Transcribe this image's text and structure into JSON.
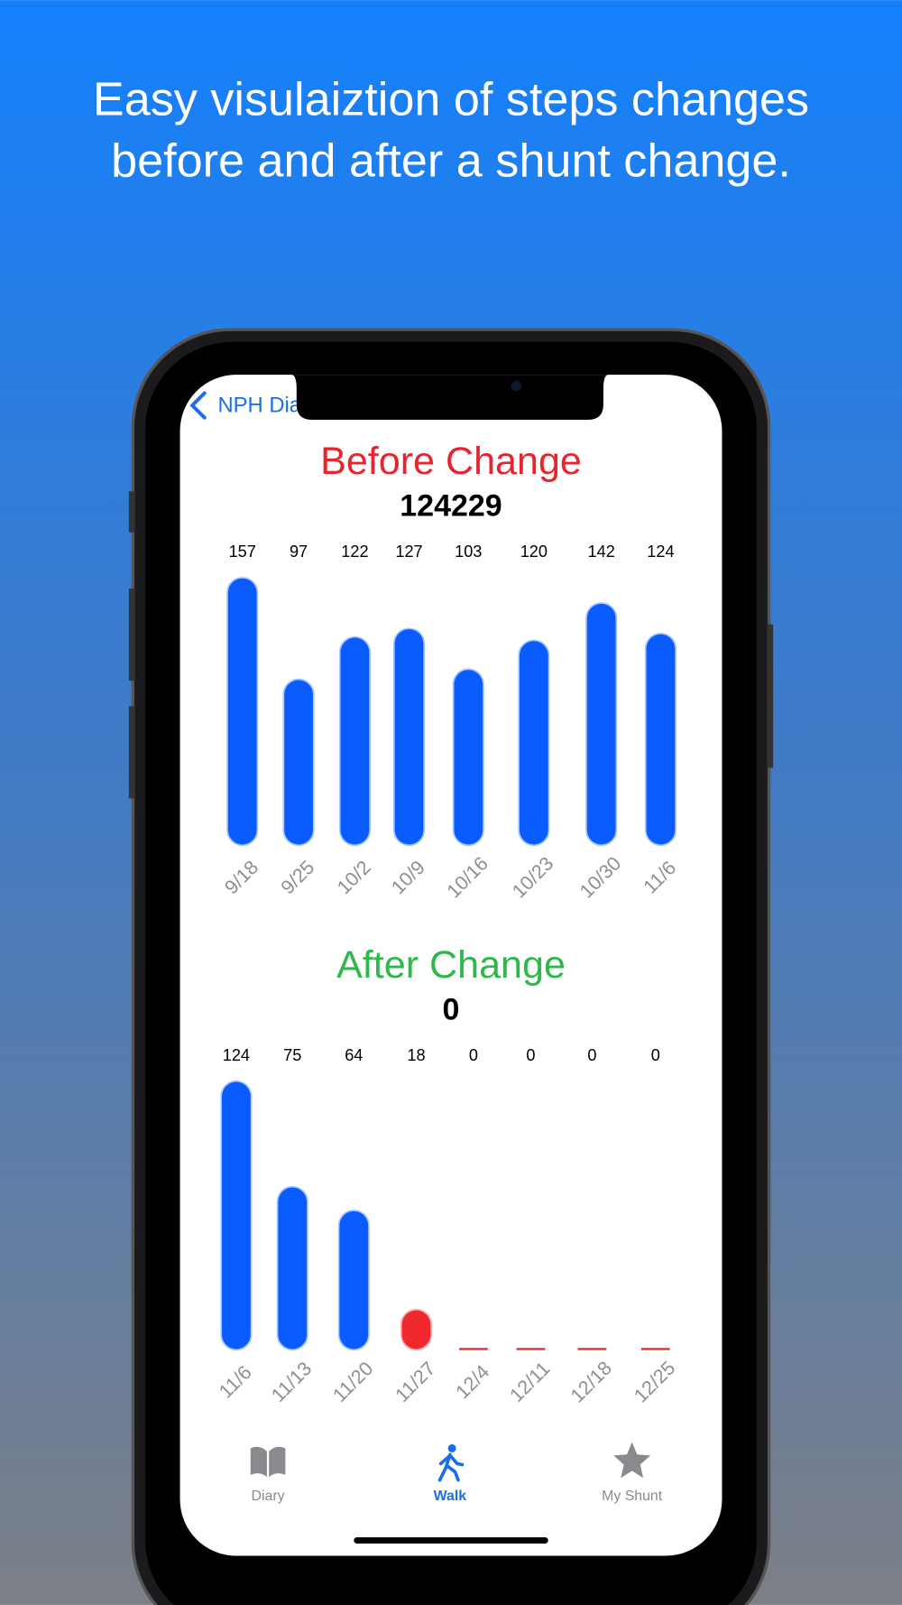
{
  "headline": [
    "Easy visulaiztion of steps changes",
    "before and after a shunt change."
  ],
  "nav": {
    "back": "NPH Dia"
  },
  "charts": [
    {
      "type": "bar",
      "title": "Before Change",
      "title_color": "#e5262e",
      "total": 124229,
      "categories": [
        "9/18",
        "9/25",
        "10/2",
        "10/9",
        "10/16",
        "10/23",
        "10/30",
        "11/6"
      ],
      "values": [
        157,
        97,
        122,
        127,
        103,
        120,
        142,
        124
      ],
      "colors": [
        "#0a5cff",
        "#0a5cff",
        "#0a5cff",
        "#0a5cff",
        "#0a5cff",
        "#0a5cff",
        "#0a5cff",
        "#0a5cff"
      ]
    },
    {
      "type": "bar",
      "title": "After Change",
      "title_color": "#2eb84b",
      "total": 0,
      "categories": [
        "11/6",
        "11/13",
        "11/20",
        "11/27",
        "12/4",
        "12/11",
        "12/18",
        "12/25"
      ],
      "values": [
        124,
        75,
        64,
        18,
        0,
        0,
        0,
        0
      ],
      "colors": [
        "#0a5cff",
        "#0a5cff",
        "#0a5cff",
        "#ee2a2f",
        "#ee2a2f",
        "#ee2a2f",
        "#ee2a2f",
        "#ee2a2f"
      ]
    }
  ],
  "tabs": [
    {
      "label": "Diary",
      "active": false
    },
    {
      "label": "Walk",
      "active": true
    },
    {
      "label": "My Shunt",
      "active": false
    }
  ]
}
